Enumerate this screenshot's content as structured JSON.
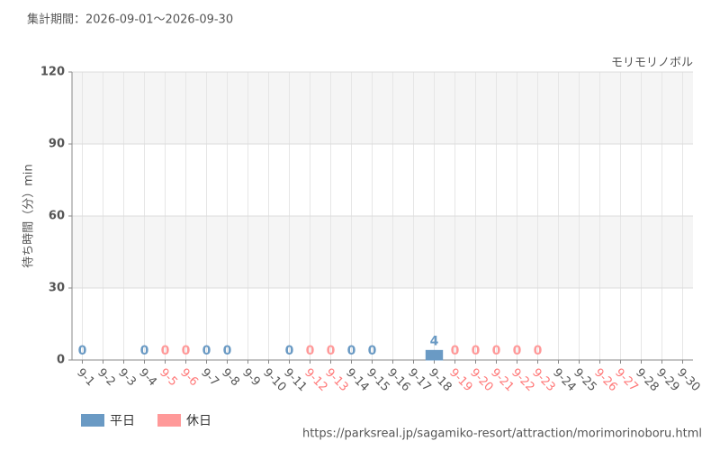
{
  "chart_data": {
    "type": "bar",
    "title": "集計期間：2026-09-01～2026-09-30",
    "subtitle": "モリモリノボル",
    "y_label": "待ち時間（分）min",
    "source": "https://parksreal.jp/sagamiko-resort/attraction/morimorinoboru.html",
    "categories": [
      "9-1",
      "9-2",
      "9-3",
      "9-4",
      "9-5",
      "9-6",
      "9-7",
      "9-8",
      "9-9",
      "9-10",
      "9-11",
      "9-12",
      "9-13",
      "9-14",
      "9-15",
      "9-16",
      "9-17",
      "9-18",
      "9-19",
      "9-20",
      "9-21",
      "9-22",
      "9-23",
      "9-24",
      "9-25",
      "9-26",
      "9-27",
      "9-28",
      "9-29",
      "9-30"
    ],
    "category_colors": [
      "#555",
      "#555",
      "#555",
      "#555",
      "#ff7777",
      "#ff7777",
      "#555",
      "#555",
      "#555",
      "#555",
      "#555",
      "#ff7777",
      "#ff7777",
      "#555",
      "#555",
      "#555",
      "#555",
      "#555",
      "#ff7777",
      "#ff7777",
      "#ff7777",
      "#ff7777",
      "#ff7777",
      "#555",
      "#555",
      "#ff7777",
      "#ff7777",
      "#555",
      "#555",
      "#555"
    ],
    "series": [
      {
        "name": "平日",
        "color": "#6a9ac4",
        "values": [
          0,
          null,
          null,
          0,
          null,
          null,
          0,
          0,
          null,
          null,
          0,
          null,
          null,
          0,
          0,
          null,
          null,
          4,
          null,
          null,
          null,
          null,
          null,
          null,
          null,
          null,
          null,
          null,
          null,
          null
        ]
      },
      {
        "name": "休日",
        "color": "#ff9999",
        "values": [
          null,
          null,
          null,
          null,
          0,
          0,
          null,
          null,
          null,
          null,
          null,
          0,
          0,
          null,
          null,
          null,
          null,
          null,
          0,
          0,
          0,
          0,
          0,
          null,
          null,
          null,
          null,
          null,
          null,
          null
        ]
      }
    ],
    "ylim": [
      0,
      120
    ],
    "yticks": [
      0,
      30,
      60,
      90,
      120
    ],
    "grid": true
  }
}
